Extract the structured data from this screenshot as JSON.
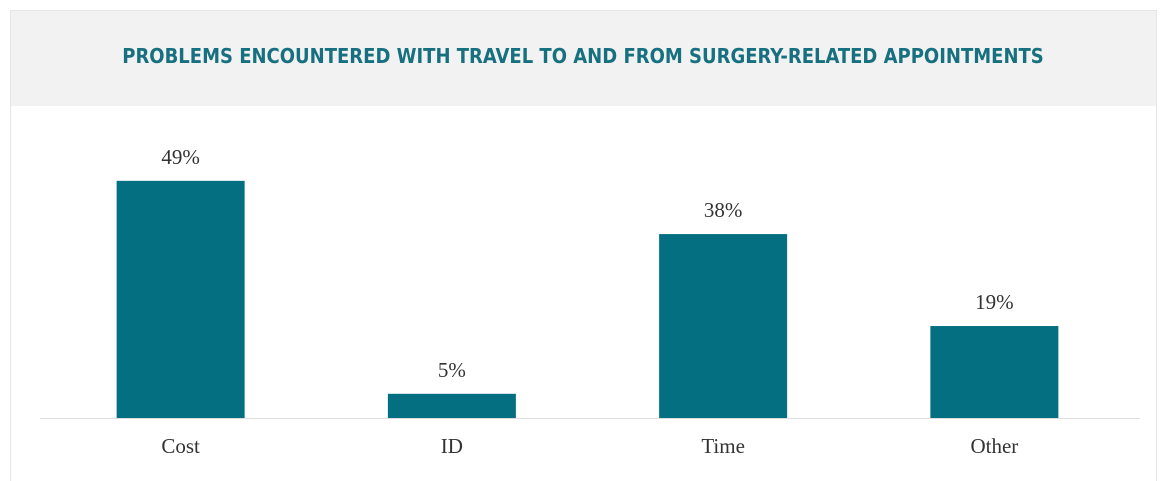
{
  "chart_data": {
    "type": "bar",
    "title": "PROBLEMS ENCOUNTERED WITH TRAVEL TO AND FROM SURGERY-RELATED APPOINTMENTS",
    "categories": [
      "Cost",
      "ID",
      "Time",
      "Other"
    ],
    "values": [
      49,
      5,
      38,
      19
    ],
    "value_labels": [
      "49%",
      "5%",
      "38%",
      "19%"
    ],
    "color": "#036f80"
  }
}
